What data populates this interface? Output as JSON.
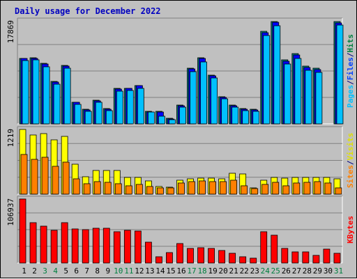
{
  "chart_data": {
    "type": "bar",
    "title": "Daily usage for December 2022",
    "categories": [
      "1",
      "2",
      "3",
      "4",
      "5",
      "6",
      "7",
      "8",
      "9",
      "10",
      "11",
      "12",
      "13",
      "14",
      "15",
      "16",
      "17",
      "18",
      "19",
      "20",
      "21",
      "22",
      "23",
      "24",
      "25",
      "26",
      "27",
      "28",
      "29",
      "30",
      "31"
    ],
    "weekend_days": [
      "3",
      "4",
      "10",
      "11",
      "17",
      "18",
      "24",
      "25",
      "31"
    ],
    "panels": [
      {
        "name": "top",
        "ymax_label": "17869",
        "ymax": 17869,
        "legend": [
          {
            "text": "Hits",
            "color": "#008040"
          },
          {
            "text": "/",
            "color": "#000080"
          },
          {
            "text": "Files",
            "color": "#0040ff"
          },
          {
            "text": "/",
            "color": "#000080"
          },
          {
            "text": "Pages",
            "color": "#00c0ff"
          }
        ],
        "series": [
          {
            "name": "Hits",
            "color": "#008080",
            "values": [
              11400,
              11500,
              10500,
              7400,
              10200,
              3800,
              2500,
              4100,
              2600,
              6100,
              6200,
              6700,
              2200,
              2200,
              1000,
              3200,
              9700,
              11500,
              8500,
              4700,
              3200,
              2600,
              2500,
              16000,
              17800,
              11100,
              12200,
              10000,
              9600,
              0,
              17700
            ]
          },
          {
            "name": "Files",
            "color": "#0000ff",
            "values": [
              11300,
              11400,
              10400,
              7200,
              10000,
              3700,
              2400,
              4000,
              2500,
              6000,
              6100,
              6600,
              2100,
              2100,
              900,
              3100,
              9500,
              11300,
              8300,
              4600,
              3100,
              2500,
              2400,
              15800,
              17600,
              10900,
              12000,
              9800,
              9400,
              0,
              17500
            ]
          },
          {
            "name": "Pages",
            "color": "#00c0ff",
            "values": [
              11000,
              11100,
              9900,
              6900,
              9700,
              3400,
              2200,
              3800,
              2300,
              5700,
              5800,
              6200,
              2000,
              1300,
              700,
              2900,
              9000,
              10800,
              8000,
              4400,
              2900,
              2300,
              2200,
              15300,
              17000,
              10400,
              11400,
              9300,
              8900,
              0,
              17200
            ]
          }
        ]
      },
      {
        "name": "middle",
        "ymax_label": "1219",
        "ymax": 1219,
        "legend": [
          {
            "text": "Visits",
            "color": "#e0e000"
          },
          {
            "text": "/",
            "color": "#000080"
          },
          {
            "text": "Sites",
            "color": "#ff8000"
          }
        ],
        "series": [
          {
            "name": "Visits",
            "color": "#ffff00",
            "values": [
              1219,
              1120,
              1140,
              1020,
              1090,
              560,
              330,
              440,
              450,
              440,
              310,
              320,
              250,
              140,
              130,
              260,
              290,
              300,
              300,
              290,
              390,
              380,
              120,
              260,
              310,
              300,
              320,
              310,
              310,
              320,
              290
            ]
          },
          {
            "name": "Sites",
            "color": "#ff8000",
            "values": [
              750,
              650,
              700,
              530,
              600,
              290,
              200,
              230,
              220,
              200,
              160,
              180,
              150,
              120,
              115,
              210,
              240,
              250,
              240,
              230,
              260,
              160,
              100,
              180,
              220,
              160,
              210,
              220,
              240,
              210,
              120
            ]
          }
        ]
      },
      {
        "name": "bottom",
        "ymax_label": "106937",
        "ymax": 106937,
        "legend": [
          {
            "text": "KBytes",
            "color": "#ff0000"
          }
        ],
        "series": [
          {
            "name": "KBytes",
            "color": "#ff0000",
            "values": [
              106937,
              67000,
              62000,
              55000,
              67000,
              57000,
              56000,
              58000,
              58000,
              52000,
              55000,
              53000,
              35000,
              10000,
              18000,
              32000,
              24000,
              26000,
              24000,
              21000,
              16000,
              10000,
              8000,
              52000,
              47000,
              24000,
              19000,
              19000,
              13000,
              23000,
              16000
            ]
          }
        ]
      }
    ]
  }
}
